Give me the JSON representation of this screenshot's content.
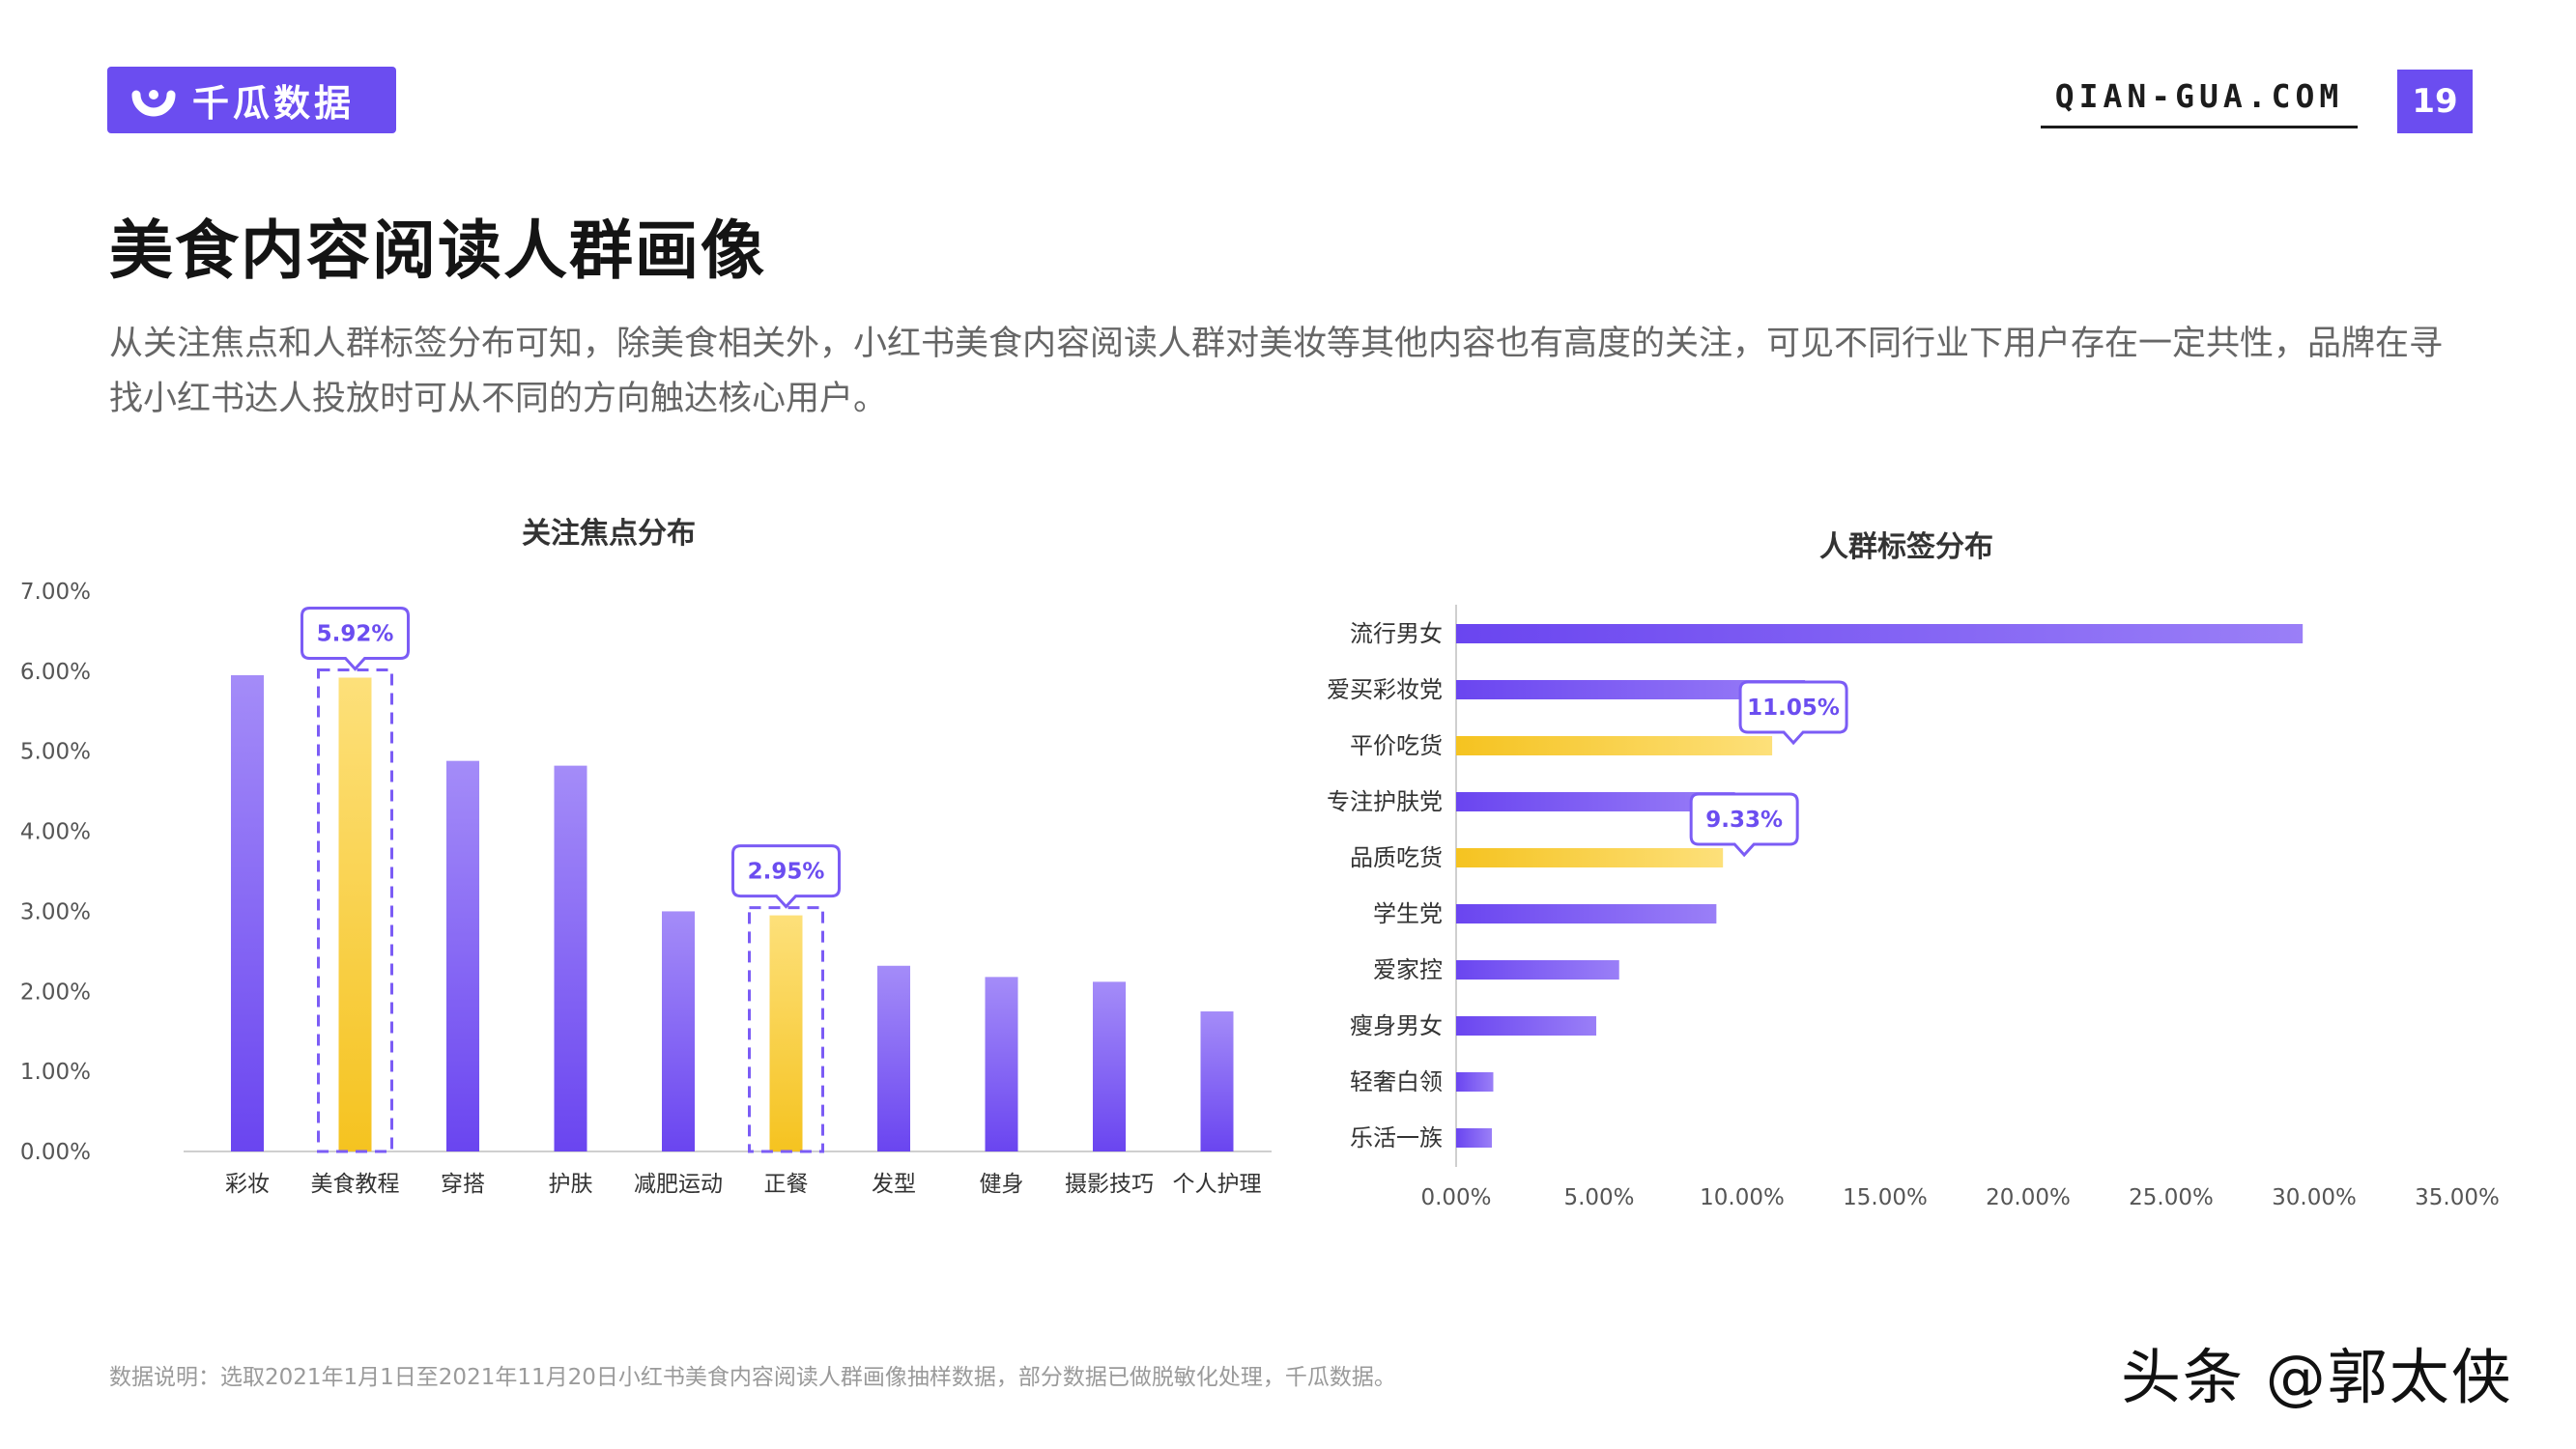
{
  "brand": {
    "name": "千瓜数据",
    "site": "QIAN-GUA.COM"
  },
  "page_number": "19",
  "title": "美食内容阅读人群画像",
  "description": "从关注焦点和人群标签分布可知，除美食相关外，小红书美食内容阅读人群对美妆等其他内容也有高度的关注，可见不同行业下用户存在一定共性，品牌在寻找小红书达人投放时可从不同的方向触达核心用户。",
  "footnote": "数据说明：选取2021年1月1日至2021年11月20日小红书美食内容阅读人群画像抽样数据，部分数据已做脱敏化处理，千瓜数据。",
  "signature": "头条 @郭太侠",
  "colors": {
    "brand": "#6b4df0",
    "bar_purple": "#7b5cf5",
    "bar_yellow": "#f7c52b",
    "callout": "#7b5cf5"
  },
  "chart_data": [
    {
      "type": "bar",
      "title": "关注焦点分布",
      "categories": [
        "彩妆",
        "美食教程",
        "穿搭",
        "护肤",
        "减肥运动",
        "正餐",
        "发型",
        "健身",
        "摄影技巧",
        "个人护理"
      ],
      "values": [
        5.95,
        5.92,
        4.88,
        4.82,
        3.0,
        2.95,
        2.32,
        2.18,
        2.12,
        1.75
      ],
      "highlight": [
        "美食教程",
        "正餐"
      ],
      "callouts": [
        {
          "category": "美食教程",
          "label": "5.92%"
        },
        {
          "category": "正餐",
          "label": "2.95%"
        }
      ],
      "ylim": [
        0,
        7
      ],
      "yticks": [
        "0.00%",
        "1.00%",
        "2.00%",
        "3.00%",
        "4.00%",
        "5.00%",
        "6.00%",
        "7.00%"
      ],
      "grid": false
    },
    {
      "type": "bar",
      "orientation": "horizontal",
      "title": "人群标签分布",
      "categories": [
        "流行男女",
        "爱买彩妆党",
        "平价吃货",
        "专注护肤党",
        "品质吃货",
        "学生党",
        "爱家控",
        "瘦身男女",
        "轻奢白领",
        "乐活一族"
      ],
      "values": [
        29.6,
        12.2,
        11.05,
        9.75,
        9.33,
        9.1,
        5.7,
        4.9,
        1.3,
        1.25
      ],
      "highlight": [
        "平价吃货",
        "品质吃货"
      ],
      "callouts": [
        {
          "category": "平价吃货",
          "label": "11.05%"
        },
        {
          "category": "品质吃货",
          "label": "9.33%"
        }
      ],
      "xlim": [
        0,
        35
      ],
      "xticks": [
        "0.00%",
        "5.00%",
        "10.00%",
        "15.00%",
        "20.00%",
        "25.00%",
        "30.00%",
        "35.00%"
      ],
      "grid": false
    }
  ]
}
